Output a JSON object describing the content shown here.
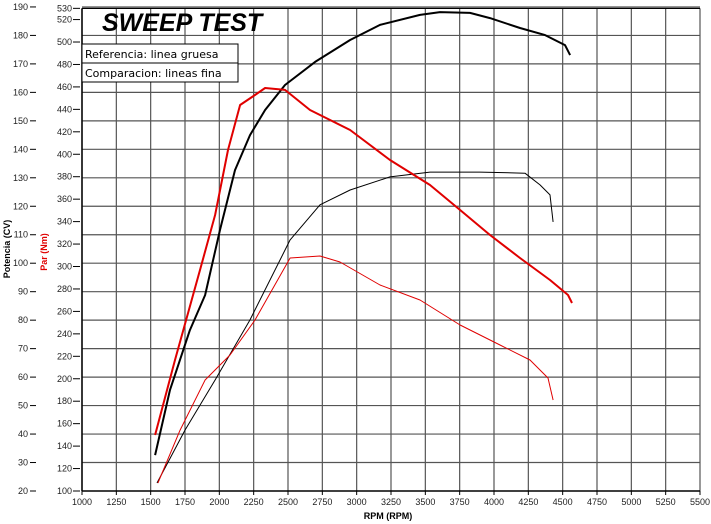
{
  "chart_data": {
    "type": "line",
    "title": "SWEEP TEST",
    "xlabel": "RPM (RPM)",
    "ylabel_left": "Potencia (CV)",
    "ylabel_right": "Par (Nm)",
    "xlim": [
      1000,
      5500
    ],
    "ylim_power": [
      20,
      190
    ],
    "ylim_torque": [
      100,
      530
    ],
    "x_ticks": [
      1000,
      1250,
      1500,
      1750,
      2000,
      2250,
      2500,
      2750,
      3000,
      3250,
      3500,
      3750,
      4000,
      4250,
      4500,
      4750,
      5000,
      5250,
      5500
    ],
    "power_ticks": [
      20,
      30,
      40,
      50,
      60,
      70,
      80,
      90,
      100,
      110,
      120,
      130,
      140,
      150,
      160,
      170,
      180,
      190
    ],
    "torque_ticks": [
      100,
      120,
      140,
      160,
      180,
      200,
      220,
      240,
      260,
      280,
      300,
      320,
      340,
      360,
      380,
      400,
      420,
      440,
      460,
      480,
      500,
      520,
      530
    ],
    "grid": true,
    "legend": [
      "Referencia: linea gruesa",
      "Comparacion: lineas fina"
    ],
    "legend_placement": "top-left",
    "colors": {
      "power": "#000000",
      "torque": "#e00000"
    },
    "series": [
      {
        "name": "Potencia referencia",
        "axis": "power",
        "style": "thick",
        "color": "#000000",
        "x": [
          1532,
          1641,
          1786,
          1896,
          2005,
          2114,
          2223,
          2333,
          2478,
          2697,
          2952,
          3170,
          3461,
          3607,
          3825,
          3971,
          4189,
          4372,
          4517,
          4554
        ],
        "y": [
          32.6,
          55.5,
          76.5,
          88.8,
          111.7,
          132.7,
          145.0,
          153.8,
          162.6,
          170.7,
          178.4,
          183.7,
          187.2,
          188.2,
          187.9,
          186.1,
          182.6,
          180.1,
          176.6,
          173.1
        ]
      },
      {
        "name": "Potencia comparacion",
        "axis": "power",
        "style": "thin",
        "color": "#000000",
        "x": [
          1546,
          1750,
          1969,
          2223,
          2515,
          2733,
          2952,
          3243,
          3534,
          3898,
          4226,
          4335,
          4408,
          4430
        ],
        "y": [
          22.8,
          41.4,
          59.0,
          80.1,
          108.2,
          120.5,
          125.7,
          130.3,
          132.0,
          132.0,
          131.6,
          127.5,
          124.0,
          114.5
        ]
      },
      {
        "name": "Par referencia",
        "axis": "torque",
        "style": "thick",
        "color": "#e00000",
        "x": [
          1532,
          1677,
          1859,
          1969,
          2063,
          2151,
          2260,
          2333,
          2478,
          2660,
          2952,
          3243,
          3534,
          3753,
          3971,
          4189,
          4408,
          4539,
          4568
        ],
        "y": [
          149.9,
          216.7,
          296.9,
          345.9,
          403.8,
          443.9,
          452.8,
          459.0,
          457.3,
          439.4,
          421.6,
          394.9,
          372.6,
          350.3,
          328.1,
          307.6,
          288.0,
          274.6,
          267.5
        ]
      },
      {
        "name": "Par comparacion",
        "axis": "torque",
        "style": "thin",
        "color": "#e00000",
        "x": [
          1553,
          1714,
          1896,
          2078,
          2260,
          2515,
          2733,
          2879,
          3170,
          3461,
          3753,
          4044,
          4262,
          4393,
          4430
        ],
        "y": [
          107.1,
          154.3,
          198.9,
          221.2,
          252.3,
          307.6,
          309.4,
          304.0,
          283.5,
          270.2,
          247.9,
          230.1,
          216.7,
          200.7,
          181.1
        ]
      }
    ]
  }
}
